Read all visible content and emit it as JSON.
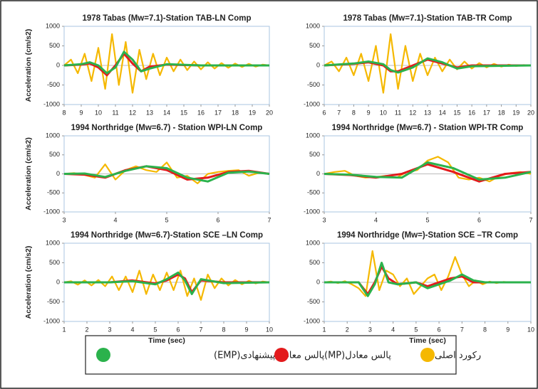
{
  "chart_data": [
    {
      "type": "line",
      "title": "1978 Tabas (Mw=7.1)-Station TAB-LN Comp",
      "ylabel": "Acceleration (cm/s2)",
      "xlim": [
        8,
        20
      ],
      "xticks": [
        8,
        9,
        10,
        11,
        12,
        13,
        14,
        15,
        16,
        17,
        18,
        19,
        20
      ],
      "ylim": [
        -1000,
        1000
      ],
      "yticks": [
        -1000,
        -500,
        0,
        500,
        1000
      ],
      "series": [
        {
          "color": "#f5b800",
          "x": [
            8,
            8.4,
            8.8,
            9.2,
            9.6,
            10,
            10.4,
            10.8,
            11.2,
            11.6,
            12,
            12.4,
            12.8,
            13.2,
            13.6,
            14,
            14.4,
            14.8,
            15.2,
            15.6,
            16,
            16.4,
            16.8,
            17.2,
            17.6,
            18,
            18.4,
            18.8,
            19.2,
            19.6,
            20
          ],
          "values": [
            0,
            150,
            -200,
            300,
            -400,
            450,
            -600,
            800,
            -500,
            600,
            -700,
            400,
            -350,
            300,
            -250,
            200,
            -150,
            150,
            -120,
            100,
            -100,
            80,
            -80,
            60,
            -60,
            50,
            -40,
            40,
            -30,
            20,
            0
          ]
        },
        {
          "color": "#e31a1c",
          "x": [
            8,
            9,
            9.5,
            10,
            10.5,
            11,
            11.5,
            12,
            12.5,
            13,
            14,
            16,
            20
          ],
          "values": [
            0,
            20,
            50,
            -50,
            -250,
            0,
            300,
            50,
            -150,
            -30,
            20,
            0,
            0
          ]
        },
        {
          "color": "#2bb24c",
          "x": [
            8,
            9,
            9.5,
            10,
            10.5,
            11,
            11.5,
            12,
            12.5,
            13,
            14,
            16,
            20
          ],
          "values": [
            0,
            30,
            80,
            0,
            -200,
            -50,
            350,
            150,
            -150,
            -80,
            30,
            0,
            0
          ]
        }
      ]
    },
    {
      "type": "line",
      "title": "1978 Tabas (Mw=7.1)-Station TAB-TR Comp",
      "xlim": [
        6,
        20
      ],
      "xticks": [
        6,
        7,
        8,
        9,
        10,
        11,
        12,
        13,
        14,
        15,
        16,
        17,
        18,
        19,
        20
      ],
      "ylim": [
        -1000,
        1000
      ],
      "yticks": [
        -1000,
        -500,
        0,
        500,
        1000
      ],
      "series": [
        {
          "color": "#f5b800",
          "x": [
            6,
            6.5,
            7,
            7.5,
            8,
            8.5,
            9,
            9.5,
            10,
            10.5,
            11,
            11.5,
            12,
            12.5,
            13,
            13.5,
            14,
            14.5,
            15,
            15.5,
            16,
            16.5,
            17,
            17.5,
            18,
            18.5,
            19,
            19.5,
            20
          ],
          "values": [
            0,
            100,
            -150,
            200,
            -250,
            300,
            -400,
            500,
            -700,
            800,
            -600,
            500,
            -400,
            300,
            -250,
            200,
            -150,
            150,
            -100,
            100,
            -80,
            60,
            -50,
            40,
            -30,
            20,
            -15,
            10,
            0
          ]
        },
        {
          "color": "#e31a1c",
          "x": [
            6,
            8,
            9,
            10,
            10.5,
            11,
            12,
            13,
            14,
            15,
            16,
            20
          ],
          "values": [
            0,
            40,
            80,
            0,
            -150,
            -150,
            0,
            150,
            50,
            -50,
            0,
            0
          ]
        },
        {
          "color": "#2bb24c",
          "x": [
            6,
            8,
            9,
            10,
            10.5,
            11,
            12,
            13,
            14,
            15,
            16,
            20
          ],
          "values": [
            0,
            50,
            100,
            30,
            -120,
            -180,
            -50,
            180,
            80,
            -80,
            -20,
            0
          ]
        }
      ]
    },
    {
      "type": "line",
      "title": "1994 Northridge (Mw=6.7) - Station WPI-LN Comp",
      "ylabel": "Acceleration (cm/s2)",
      "xlim": [
        3,
        7
      ],
      "xticks": [
        3,
        4,
        5,
        6,
        7
      ],
      "ylim": [
        -1000,
        1000
      ],
      "yticks": [
        -1000,
        -500,
        0,
        500,
        1000
      ],
      "series": [
        {
          "color": "#f5b800",
          "x": [
            3,
            3.2,
            3.4,
            3.6,
            3.8,
            4,
            4.2,
            4.4,
            4.6,
            4.8,
            5,
            5.2,
            5.4,
            5.6,
            5.8,
            6,
            6.2,
            6.4,
            6.6,
            6.8,
            7
          ],
          "values": [
            0,
            20,
            -30,
            -100,
            250,
            -150,
            100,
            200,
            100,
            50,
            300,
            -100,
            -50,
            -250,
            0,
            50,
            80,
            100,
            -50,
            30,
            0
          ]
        },
        {
          "color": "#e31a1c",
          "x": [
            3,
            3.4,
            3.8,
            4.2,
            4.6,
            5,
            5.4,
            5.8,
            6.2,
            6.6,
            7
          ],
          "values": [
            0,
            -20,
            -100,
            100,
            200,
            100,
            -150,
            -100,
            50,
            80,
            0
          ]
        },
        {
          "color": "#2bb24c",
          "x": [
            3,
            3.4,
            3.8,
            4.2,
            4.6,
            5,
            5.4,
            5.8,
            6.2,
            6.6,
            7
          ],
          "values": [
            0,
            10,
            -80,
            80,
            200,
            150,
            -100,
            -200,
            30,
            60,
            0
          ]
        }
      ]
    },
    {
      "type": "line",
      "title": "1994 Northridge (Mw=6.7) - Station WPI-TR Comp",
      "xlim": [
        3,
        7
      ],
      "xticks": [
        3,
        4,
        5,
        6,
        7
      ],
      "ylim": [
        -1000,
        1000
      ],
      "yticks": [
        -1000,
        -500,
        0,
        500,
        1000
      ],
      "series": [
        {
          "color": "#f5b800",
          "x": [
            3,
            3.2,
            3.4,
            3.6,
            3.8,
            4,
            4.2,
            4.4,
            4.6,
            4.8,
            5,
            5.2,
            5.4,
            5.6,
            5.8,
            6,
            6.2,
            6.4,
            6.6,
            6.8,
            7
          ],
          "values": [
            0,
            50,
            80,
            -50,
            -100,
            -80,
            -50,
            -100,
            50,
            100,
            350,
            450,
            300,
            -100,
            -150,
            -100,
            -200,
            -50,
            20,
            50,
            0
          ]
        },
        {
          "color": "#e31a1c",
          "x": [
            3,
            3.5,
            4,
            4.5,
            5,
            5.5,
            6,
            6.5,
            7
          ],
          "values": [
            0,
            -30,
            -100,
            0,
            250,
            50,
            -200,
            0,
            50
          ]
        },
        {
          "color": "#2bb24c",
          "x": [
            3,
            3.5,
            4,
            4.5,
            5,
            5.5,
            6,
            6.5,
            7
          ],
          "values": [
            0,
            -20,
            -80,
            -100,
            300,
            150,
            -150,
            -100,
            50
          ]
        }
      ]
    },
    {
      "type": "line",
      "title": "1994 Northridge (Mw=6.7)-Station SCE –LN Comp",
      "ylabel": "Acceleration (cm/s2)",
      "xlabel": "Time (sec)",
      "xlim": [
        1,
        10
      ],
      "xticks": [
        1,
        2,
        3,
        4,
        5,
        6,
        7,
        8,
        9,
        10
      ],
      "ylim": [
        -1000,
        1000
      ],
      "yticks": [
        -1000,
        -500,
        0,
        500,
        1000
      ],
      "series": [
        {
          "color": "#f5b800",
          "x": [
            1,
            1.3,
            1.6,
            1.9,
            2.2,
            2.5,
            2.8,
            3.1,
            3.4,
            3.7,
            4,
            4.3,
            4.6,
            4.9,
            5.2,
            5.5,
            5.8,
            6.1,
            6.4,
            6.7,
            7,
            7.3,
            7.6,
            7.9,
            8.2,
            8.5,
            8.8,
            9.1,
            9.4,
            9.7,
            10
          ],
          "values": [
            0,
            30,
            -60,
            50,
            -80,
            60,
            -100,
            150,
            -200,
            150,
            -250,
            300,
            -300,
            200,
            -200,
            250,
            -200,
            300,
            -350,
            100,
            -450,
            200,
            -150,
            100,
            -80,
            60,
            -50,
            40,
            -30,
            20,
            0
          ]
        },
        {
          "color": "#e31a1c",
          "x": [
            1,
            3,
            4,
            5,
            5.5,
            6,
            6.3,
            6.6,
            7,
            8,
            10
          ],
          "values": [
            0,
            0,
            50,
            -30,
            50,
            200,
            100,
            -250,
            50,
            0,
            0
          ]
        },
        {
          "color": "#2bb24c",
          "x": [
            1,
            3,
            4,
            5,
            5.5,
            6,
            6.3,
            6.6,
            7,
            8,
            10
          ],
          "values": [
            0,
            0,
            30,
            -50,
            80,
            250,
            50,
            -300,
            80,
            -20,
            0
          ]
        }
      ]
    },
    {
      "type": "line",
      "title": "1994 Northridge (Mw=)-Station SCE –TR Comp",
      "xlabel": "Time (sec)",
      "xlim": [
        1,
        10
      ],
      "xticks": [
        1,
        2,
        3,
        4,
        5,
        6,
        7,
        8,
        9,
        10
      ],
      "ylim": [
        -1000,
        1000
      ],
      "yticks": [
        -1000,
        -500,
        0,
        500,
        1000
      ],
      "series": [
        {
          "color": "#f5b800",
          "x": [
            1,
            1.3,
            1.6,
            1.9,
            2.2,
            2.5,
            2.8,
            3.1,
            3.4,
            3.7,
            4,
            4.3,
            4.6,
            4.9,
            5.2,
            5.5,
            5.8,
            6.1,
            6.4,
            6.7,
            7,
            7.3,
            7.6,
            7.9,
            8.2,
            8.5,
            8.8,
            9.1,
            9.4,
            9.7,
            10
          ],
          "values": [
            0,
            20,
            -20,
            30,
            -50,
            -150,
            -350,
            800,
            -200,
            300,
            200,
            -100,
            100,
            -300,
            -100,
            100,
            200,
            -200,
            150,
            650,
            200,
            -100,
            50,
            -50,
            20,
            -20,
            10,
            0,
            0,
            0,
            0
          ]
        },
        {
          "color": "#e31a1c",
          "x": [
            1,
            2.5,
            2.9,
            3.2,
            3.5,
            3.8,
            4.2,
            5,
            5.5,
            6,
            6.5,
            7,
            7.5,
            8,
            10
          ],
          "values": [
            0,
            0,
            -300,
            0,
            400,
            100,
            -50,
            0,
            -100,
            0,
            100,
            150,
            0,
            0,
            0
          ]
        },
        {
          "color": "#2bb24c",
          "x": [
            1,
            2.5,
            2.9,
            3.2,
            3.5,
            3.8,
            4.2,
            5,
            5.5,
            6,
            6.5,
            7,
            7.5,
            8,
            10
          ],
          "values": [
            0,
            0,
            -350,
            -50,
            500,
            0,
            -50,
            0,
            -150,
            -50,
            50,
            200,
            50,
            0,
            0
          ]
        }
      ]
    }
  ],
  "legend": [
    {
      "name": "پالس معادل پیشنهادی(EMP)",
      "color": "#2bb24c"
    },
    {
      "name": "پالس معادل(MP)",
      "color": "#e31a1c"
    },
    {
      "name": "رکورد اصلی",
      "color": "#f5b800"
    }
  ]
}
